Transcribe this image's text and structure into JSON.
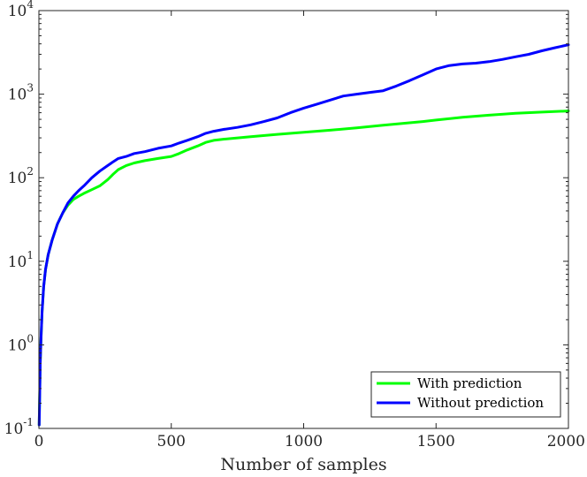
{
  "chart_data": {
    "type": "line",
    "title": "",
    "xlabel": "Number of samples",
    "ylabel": "",
    "xlim": [
      0,
      2000
    ],
    "ylim": [
      0.1,
      10000
    ],
    "yscale": "log",
    "grid": false,
    "legend_position": "bottom-right",
    "x_ticks": [
      0,
      500,
      1000,
      1500,
      2000
    ],
    "x_tick_labels": [
      "0",
      "500",
      "1000",
      "1500",
      "2000"
    ],
    "y_ticks": [
      0.1,
      1,
      10,
      100,
      1000,
      10000
    ],
    "y_tick_labels": [
      {
        "base": "10",
        "exp": "-1"
      },
      {
        "base": "10",
        "exp": "0"
      },
      {
        "base": "10",
        "exp": "1"
      },
      {
        "base": "10",
        "exp": "2"
      },
      {
        "base": "10",
        "exp": "3"
      },
      {
        "base": "10",
        "exp": "4"
      }
    ],
    "series": [
      {
        "name": "With prediction",
        "color": "#00ff00",
        "x": [
          1,
          3,
          5,
          8,
          12,
          18,
          25,
          35,
          50,
          70,
          90,
          110,
          130,
          150,
          170,
          200,
          230,
          260,
          280,
          300,
          330,
          360,
          400,
          450,
          500,
          530,
          560,
          600,
          630,
          660,
          700,
          800,
          900,
          1000,
          1100,
          1200,
          1300,
          1400,
          1450,
          1500,
          1600,
          1700,
          1800,
          1900,
          2000
        ],
        "y": [
          0.11,
          0.25,
          0.6,
          1.2,
          2.5,
          5,
          8,
          12,
          18,
          28,
          38,
          47,
          55,
          60,
          65,
          72,
          80,
          95,
          110,
          125,
          140,
          150,
          160,
          170,
          180,
          195,
          215,
          240,
          265,
          280,
          290,
          310,
          330,
          350,
          370,
          395,
          425,
          455,
          470,
          490,
          530,
          560,
          590,
          610,
          630
        ]
      },
      {
        "name": "Without prediction",
        "color": "#0000ff",
        "x": [
          1,
          3,
          5,
          8,
          12,
          18,
          25,
          35,
          50,
          70,
          90,
          110,
          130,
          150,
          170,
          200,
          230,
          260,
          280,
          300,
          330,
          360,
          400,
          450,
          500,
          530,
          560,
          600,
          630,
          660,
          700,
          750,
          800,
          850,
          900,
          950,
          1000,
          1050,
          1100,
          1150,
          1200,
          1250,
          1300,
          1350,
          1400,
          1450,
          1500,
          1550,
          1600,
          1650,
          1700,
          1750,
          1800,
          1850,
          1900,
          1950,
          2000
        ],
        "y": [
          0.11,
          0.25,
          0.6,
          1.2,
          2.5,
          5,
          8,
          12,
          18,
          28,
          38,
          50,
          60,
          70,
          80,
          100,
          120,
          140,
          155,
          170,
          180,
          195,
          205,
          225,
          240,
          260,
          280,
          310,
          340,
          360,
          380,
          400,
          430,
          470,
          520,
          600,
          680,
          760,
          850,
          950,
          1000,
          1050,
          1100,
          1250,
          1450,
          1700,
          2000,
          2200,
          2300,
          2350,
          2450,
          2600,
          2800,
          3000,
          3300,
          3600,
          3900
        ]
      }
    ]
  }
}
